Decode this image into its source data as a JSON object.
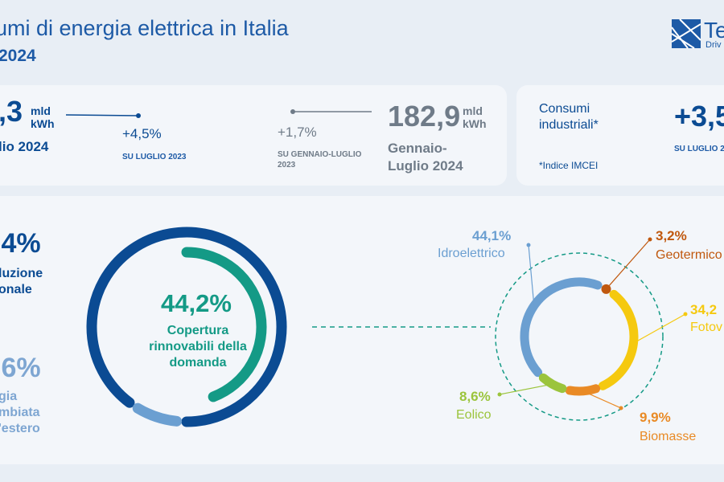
{
  "header": {
    "title": "umi di energia elettrica in Italia",
    "subtitle": "2024",
    "logo_text": "Te",
    "logo_tagline": "Driv"
  },
  "kpis": {
    "monthly": {
      "value": ",3",
      "unit_line1": "mld",
      "unit_line2": "kWh",
      "period": "lio 2024",
      "delta": "+4,5%",
      "delta_ref": "SU LUGLIO 2023"
    },
    "ytd": {
      "value": "182,9",
      "unit_line1": "mld",
      "unit_line2": "kWh",
      "period": "Gennaio-Luglio 2024",
      "delta": "+1,7%",
      "delta_ref": "SU GENNAIO-LUGLIO 2023"
    },
    "industrial": {
      "label": "Consumi industriali*",
      "value": "+3,5",
      "delta_ref": "SU LUGLIO 2",
      "note": "*Indice IMCEI"
    }
  },
  "coverage": {
    "national_pct": ",4%",
    "national_label": "luzione onale",
    "foreign_pct": ",6%",
    "foreign_label": "gia mbiata 'estero",
    "renewables_pct": "44,2%",
    "renewables_label": "Copertura rinnovabili della domanda"
  },
  "colors": {
    "dark_blue": "#0b4b93",
    "light_blue": "#6b9fd1",
    "teal": "#149a86",
    "hydro": "#6b9fd1",
    "geo": "#c0580e",
    "solar": "#f5c90f",
    "bio": "#e98a25",
    "wind": "#9bc43c"
  },
  "chart_data": [
    {
      "type": "pie",
      "title": "",
      "categories": [
        "",
        ""
      ],
      "values": [
        91.4,
        8.6
      ]
    },
    {
      "type": "pie",
      "title": "",
      "categories": [
        "Copertura rinnovabili della domanda",
        ""
      ],
      "values": [
        44.2,
        55.8
      ]
    },
    {
      "type": "pie",
      "title": "",
      "categories": [
        "Idroelettrico",
        "Geotermico",
        "Fotov",
        "Biomasse",
        "Eolico"
      ],
      "values": [
        44.1,
        3.2,
        34.2,
        9.9,
        8.6
      ],
      "labels": [
        "44,1%",
        "3,2%",
        "34,2",
        "9,9%",
        "8,6%"
      ]
    }
  ]
}
